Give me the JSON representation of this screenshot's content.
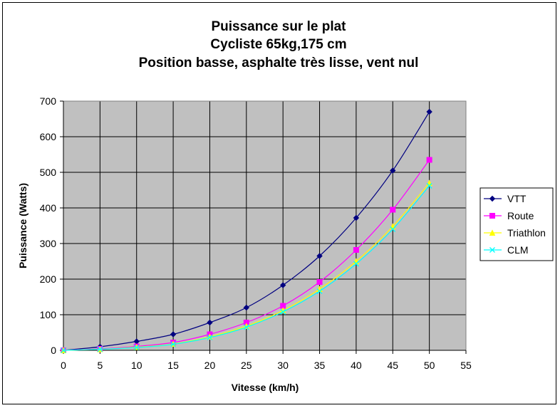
{
  "chart_data": {
    "type": "line",
    "title": [
      "Puissance sur le plat",
      "Cycliste 65kg,175 cm",
      "Position basse, asphalte très lisse, vent nul"
    ],
    "xlabel": "Vitesse (km/h)",
    "ylabel": "Puissance (Watts)",
    "xlim": [
      0,
      55
    ],
    "ylim": [
      0,
      700
    ],
    "xticks": [
      0,
      5,
      10,
      15,
      20,
      25,
      30,
      35,
      40,
      45,
      50,
      55
    ],
    "yticks": [
      0,
      100,
      200,
      300,
      400,
      500,
      600,
      700
    ],
    "grid": true,
    "legend_position": "right",
    "plot_background": "#c0c0c0",
    "x": [
      0,
      5,
      10,
      15,
      20,
      25,
      30,
      35,
      40,
      45,
      50
    ],
    "series": [
      {
        "name": "VTT",
        "color": "#000080",
        "marker": "diamond",
        "values": [
          0,
          10,
          25,
          45,
          78,
          120,
          183,
          265,
          372,
          505,
          670
        ]
      },
      {
        "name": "Route",
        "color": "#ff00ff",
        "marker": "square",
        "values": [
          0,
          4,
          11,
          22,
          45,
          78,
          125,
          192,
          282,
          395,
          535
        ]
      },
      {
        "name": "Triathlon",
        "color": "#ffff00",
        "marker": "triangle",
        "values": [
          0,
          3,
          9,
          18,
          38,
          68,
          112,
          172,
          250,
          348,
          470
        ]
      },
      {
        "name": "CLM",
        "color": "#00ffff",
        "marker": "x",
        "values": [
          0,
          3,
          8,
          17,
          36,
          65,
          108,
          166,
          243,
          340,
          462
        ]
      }
    ]
  }
}
